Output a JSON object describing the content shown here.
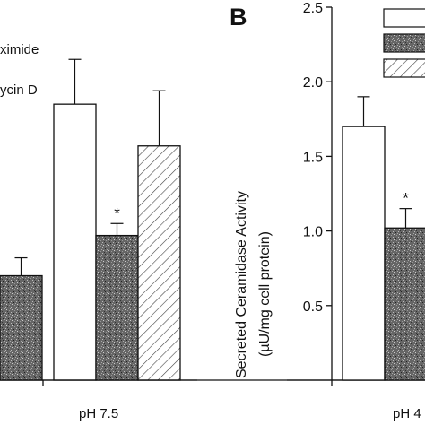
{
  "chart_data": [
    {
      "type": "bar",
      "panel_label": "",
      "categories": [
        "",
        "pH 7.5"
      ],
      "legend_visible_fragments": [
        "ximide",
        "ycin D"
      ],
      "series": [
        {
          "fill": "#ffffff",
          "pattern": "none",
          "values": [
            null,
            1.85
          ],
          "errors": [
            null,
            0.3
          ]
        },
        {
          "fill": "#666666",
          "pattern": "stipple",
          "values": [
            0.7,
            0.97
          ],
          "errors": [
            0.12,
            0.08
          ]
        },
        {
          "fill": "#ffffff",
          "pattern": "hatch",
          "values": [
            null,
            1.57
          ],
          "errors": [
            null,
            0.37
          ]
        }
      ],
      "annotations": [
        {
          "text": "*",
          "category": 1,
          "series": 1
        }
      ],
      "ylim": [
        0,
        2.5
      ]
    },
    {
      "type": "bar",
      "panel_label": "B",
      "categories": [
        "pH 4"
      ],
      "category_label_visible": "pH 4",
      "ylabel_line1": "Secreted Ceramidase Activity",
      "ylabel_line2": "(µU/mg cell protein)",
      "ylim": [
        0,
        2.5
      ],
      "yticks": [
        "0.5",
        "1.0",
        "1.5",
        "2.0",
        "2.5"
      ],
      "series": [
        {
          "fill": "#ffffff",
          "pattern": "none",
          "values": [
            1.7
          ],
          "errors": [
            0.2
          ]
        },
        {
          "fill": "#666666",
          "pattern": "stipple",
          "values": [
            1.02
          ],
          "errors": [
            0.13
          ]
        },
        {
          "fill": "#ffffff",
          "pattern": "hatch",
          "values": [
            null
          ],
          "errors": [
            null
          ]
        }
      ],
      "annotations": [
        {
          "text": "*",
          "category": 0,
          "series": 1
        }
      ]
    }
  ],
  "colors": {
    "ink": "#111111",
    "stipple_dark": "#333333",
    "stipple_light": "#bbbbbb"
  }
}
